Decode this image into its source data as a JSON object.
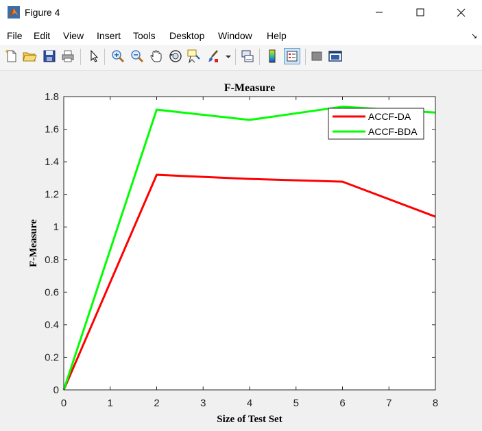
{
  "window": {
    "title": "Figure 4",
    "icon": "matlab-icon"
  },
  "menu": {
    "items": [
      "File",
      "Edit",
      "View",
      "Insert",
      "Tools",
      "Desktop",
      "Window",
      "Help"
    ]
  },
  "toolbar": {
    "icons": [
      "new-figure-icon",
      "open-file-icon",
      "save-icon",
      "print-icon",
      "pointer-icon",
      "zoom-in-icon",
      "zoom-out-icon",
      "pan-hand-icon",
      "rotate-3d-icon",
      "data-cursor-icon",
      "brush-icon",
      "link-plot-icon",
      "colorbar-icon",
      "legend-icon",
      "hide-plot-tools-icon",
      "show-plot-tools-icon"
    ]
  },
  "chart_data": {
    "type": "line",
    "title": "F-Measure",
    "xlabel": "Size of Test Set",
    "ylabel": "F-Measure",
    "xlim": [
      0,
      8
    ],
    "ylim": [
      0,
      1.8
    ],
    "xticks": [
      "0",
      "1",
      "2",
      "3",
      "4",
      "5",
      "6",
      "7",
      "8"
    ],
    "yticks": [
      "0",
      "0.2",
      "0.4",
      "0.6",
      "0.8",
      "1",
      "1.2",
      "1.4",
      "1.6",
      "1.8"
    ],
    "grid": false,
    "legend_position": "top-right",
    "series": [
      {
        "name": "ACCF-DA",
        "color": "#ff0000",
        "x": [
          0,
          2,
          4,
          6,
          8
        ],
        "y": [
          0,
          1.32,
          1.295,
          1.278,
          1.063
        ]
      },
      {
        "name": "ACCF-BDA",
        "color": "#00ff00",
        "x": [
          0,
          2,
          4,
          6,
          8
        ],
        "y": [
          0,
          1.72,
          1.657,
          1.738,
          1.702
        ]
      }
    ]
  }
}
